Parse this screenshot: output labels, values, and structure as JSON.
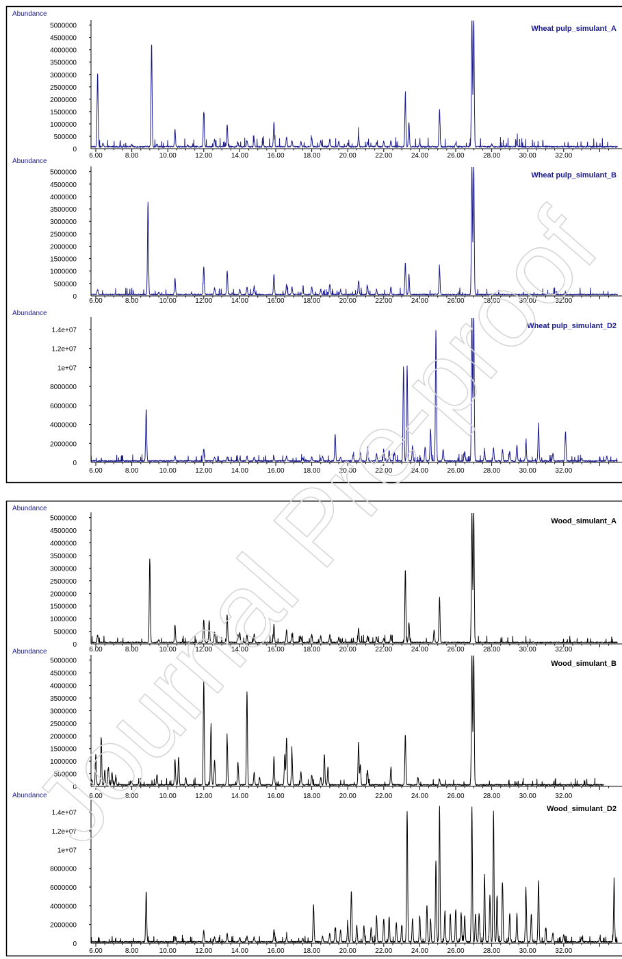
{
  "watermark": "Journal Pre-proof",
  "chart_data": [
    {
      "type": "line",
      "title": "Wheat pulp_simulant_A",
      "ylabel": "Abundance",
      "xlim": [
        5.6,
        35.0
      ],
      "ylim": [
        0,
        5100000
      ],
      "yticks": [
        0,
        500000,
        1000000,
        1500000,
        2000000,
        2500000,
        3000000,
        3500000,
        4000000,
        4500000,
        5000000
      ],
      "ytick_labels": [
        "0",
        "500000",
        "1000000",
        "1500000",
        "2000000",
        "2500000",
        "3000000",
        "3500000",
        "4000000",
        "4500000",
        "5000000"
      ],
      "xticks": [
        6,
        8,
        10,
        12,
        14,
        16,
        18,
        20,
        22,
        24,
        26,
        28,
        30,
        32
      ],
      "xtick_labels": [
        "6.00",
        "8.00",
        "10.00",
        "12.00",
        "14.00",
        "16.00",
        "18.00",
        "20.00",
        "22.00",
        "24.00",
        "26.00",
        "28.00",
        "30.00",
        "32.00"
      ],
      "color": "#1a1a8c",
      "baseline": 80000,
      "tail": 35.0,
      "peaks": [
        [
          6.1,
          3000000
        ],
        [
          6.4,
          120000
        ],
        [
          8.0,
          80000
        ],
        [
          9.1,
          4200000
        ],
        [
          9.4,
          100000
        ],
        [
          10.4,
          700000
        ],
        [
          11.1,
          80000
        ],
        [
          12.0,
          1400000
        ],
        [
          12.6,
          300000
        ],
        [
          13.3,
          900000
        ],
        [
          13.9,
          150000
        ],
        [
          14.4,
          250000
        ],
        [
          14.8,
          300000
        ],
        [
          15.3,
          150000
        ],
        [
          15.9,
          1000000
        ],
        [
          16.6,
          400000
        ],
        [
          16.9,
          250000
        ],
        [
          17.4,
          200000
        ],
        [
          18.0,
          350000
        ],
        [
          18.5,
          250000
        ],
        [
          19.0,
          300000
        ],
        [
          19.5,
          200000
        ],
        [
          20.0,
          150000
        ],
        [
          20.6,
          450000
        ],
        [
          21.1,
          200000
        ],
        [
          21.6,
          150000
        ],
        [
          22.0,
          200000
        ],
        [
          22.4,
          250000
        ],
        [
          23.2,
          2100000
        ],
        [
          23.4,
          1000000
        ],
        [
          24.0,
          150000
        ],
        [
          25.1,
          1500000
        ],
        [
          26.0,
          150000
        ],
        [
          26.9,
          5200000
        ],
        [
          27.0,
          5200000
        ],
        [
          28.0,
          100000
        ],
        [
          29.4,
          250000
        ]
      ]
    },
    {
      "type": "line",
      "title": "Wheat pulp_simulant_B",
      "ylabel": "Abundance",
      "xlim": [
        5.6,
        35.0
      ],
      "ylim": [
        0,
        5100000
      ],
      "yticks": [
        0,
        500000,
        1000000,
        1500000,
        2000000,
        2500000,
        3000000,
        3500000,
        4000000,
        4500000,
        5000000
      ],
      "ytick_labels": [
        "0",
        "500000",
        "1000000",
        "1500000",
        "2000000",
        "2500000",
        "3000000",
        "3500000",
        "4000000",
        "4500000",
        "5000000"
      ],
      "xticks": [
        6,
        8,
        10,
        12,
        14,
        16,
        18,
        20,
        22,
        24,
        26,
        28,
        30,
        32
      ],
      "xtick_labels": [
        "6.00",
        "8.00",
        "10.00",
        "12.00",
        "14.00",
        "16.00",
        "18.00",
        "20.00",
        "22.00",
        "24.00",
        "26.00",
        "28.00",
        "30.00",
        "32.00"
      ],
      "color": "#1a1a8c",
      "baseline": 60000,
      "tail": 35.0,
      "peaks": [
        [
          6.1,
          200000
        ],
        [
          8.9,
          3700000
        ],
        [
          9.5,
          100000
        ],
        [
          10.4,
          650000
        ],
        [
          12.0,
          1100000
        ],
        [
          12.6,
          250000
        ],
        [
          13.3,
          950000
        ],
        [
          14.0,
          200000
        ],
        [
          14.4,
          300000
        ],
        [
          14.8,
          350000
        ],
        [
          15.9,
          800000
        ],
        [
          16.6,
          400000
        ],
        [
          16.9,
          300000
        ],
        [
          17.5,
          200000
        ],
        [
          18.0,
          300000
        ],
        [
          18.5,
          200000
        ],
        [
          19.0,
          400000
        ],
        [
          19.6,
          150000
        ],
        [
          20.6,
          550000
        ],
        [
          21.1,
          300000
        ],
        [
          21.6,
          200000
        ],
        [
          22.4,
          300000
        ],
        [
          23.2,
          1300000
        ],
        [
          23.4,
          800000
        ],
        [
          25.1,
          1050000
        ],
        [
          26.9,
          5200000
        ],
        [
          27.0,
          5200000
        ]
      ]
    },
    {
      "type": "line",
      "title": "Wheat pulp_simulant_D2",
      "ylabel": "Abundance",
      "xlim": [
        5.6,
        35.0
      ],
      "ylim": [
        0,
        15000000
      ],
      "yticks": [
        0,
        2000000,
        4000000,
        6000000,
        8000000,
        10000000,
        12000000,
        14000000
      ],
      "ytick_labels": [
        "0",
        "2000000",
        "4000000",
        "6000000",
        "8000000",
        "1e+07",
        "1.2e+07",
        "1.4e+07"
      ],
      "xticks": [
        6,
        8,
        10,
        12,
        14,
        16,
        18,
        20,
        22,
        24,
        26,
        28,
        30,
        32
      ],
      "xtick_labels": [
        "6.00",
        "8.00",
        "10.00",
        "12.00",
        "14.00",
        "16.00",
        "18.00",
        "20.00",
        "22.00",
        "24.00",
        "26.00",
        "28.00",
        "30.00",
        "32.00"
      ],
      "color": "#1a1a8c",
      "baseline": 150000,
      "tail": 35.0,
      "peaks": [
        [
          8.8,
          5500000
        ],
        [
          10.4,
          500000
        ],
        [
          12.0,
          1300000
        ],
        [
          12.6,
          400000
        ],
        [
          13.3,
          400000
        ],
        [
          14.0,
          300000
        ],
        [
          14.4,
          500000
        ],
        [
          14.8,
          400000
        ],
        [
          15.9,
          400000
        ],
        [
          16.6,
          500000
        ],
        [
          17.5,
          300000
        ],
        [
          18.0,
          400000
        ],
        [
          18.6,
          500000
        ],
        [
          19.3,
          2800000
        ],
        [
          19.6,
          400000
        ],
        [
          20.3,
          700000
        ],
        [
          20.7,
          900000
        ],
        [
          21.1,
          1500000
        ],
        [
          21.6,
          800000
        ],
        [
          22.0,
          1100000
        ],
        [
          22.3,
          1100000
        ],
        [
          22.6,
          900000
        ],
        [
          23.1,
          9900000
        ],
        [
          23.3,
          10000000
        ],
        [
          23.6,
          1600000
        ],
        [
          24.3,
          1500000
        ],
        [
          24.6,
          3400000
        ],
        [
          24.9,
          13800000
        ],
        [
          25.3,
          1200000
        ],
        [
          26.5,
          1000000
        ],
        [
          26.9,
          15500000
        ],
        [
          27.0,
          15500000
        ],
        [
          27.6,
          1000000
        ],
        [
          28.1,
          1400000
        ],
        [
          28.6,
          1200000
        ],
        [
          29.0,
          1000000
        ],
        [
          29.4,
          1700000
        ],
        [
          29.9,
          1900000
        ],
        [
          30.6,
          3700000
        ],
        [
          31.4,
          800000
        ],
        [
          32.1,
          3100000
        ],
        [
          33.0,
          300000
        ],
        [
          34.4,
          500000
        ]
      ]
    },
    {
      "type": "line",
      "title": "Wood_simulant_A",
      "ylabel": "Abundance",
      "xlim": [
        5.6,
        35.0
      ],
      "ylim": [
        0,
        5100000
      ],
      "yticks": [
        0,
        500000,
        1000000,
        1500000,
        2000000,
        2500000,
        3000000,
        3500000,
        4000000,
        4500000,
        5000000
      ],
      "ytick_labels": [
        "0",
        "500000",
        "1000000",
        "1500000",
        "2000000",
        "2500000",
        "3000000",
        "3500000",
        "4000000",
        "4500000",
        "5000000"
      ],
      "xticks": [
        6,
        8,
        10,
        12,
        14,
        16,
        18,
        20,
        22,
        24,
        26,
        28,
        30,
        32
      ],
      "xtick_labels": [
        "6.00",
        "8.00",
        "10.00",
        "12.00",
        "14.00",
        "16.00",
        "18.00",
        "20.00",
        "22.00",
        "24.00",
        "26.00",
        "28.00",
        "30.00",
        "32.00"
      ],
      "color": "#000000",
      "baseline": 60000,
      "tail": 35.0,
      "peaks": [
        [
          6.1,
          300000
        ],
        [
          9.0,
          3300000
        ],
        [
          9.5,
          100000
        ],
        [
          10.4,
          700000
        ],
        [
          12.0,
          900000
        ],
        [
          12.3,
          850000
        ],
        [
          12.6,
          400000
        ],
        [
          13.3,
          1100000
        ],
        [
          13.9,
          300000
        ],
        [
          14.0,
          400000
        ],
        [
          14.4,
          300000
        ],
        [
          14.8,
          350000
        ],
        [
          15.9,
          700000
        ],
        [
          16.6,
          500000
        ],
        [
          16.9,
          350000
        ],
        [
          17.4,
          200000
        ],
        [
          18.0,
          300000
        ],
        [
          18.5,
          250000
        ],
        [
          19.0,
          300000
        ],
        [
          19.5,
          200000
        ],
        [
          20.6,
          550000
        ],
        [
          21.1,
          250000
        ],
        [
          21.6,
          200000
        ],
        [
          22.0,
          150000
        ],
        [
          22.4,
          300000
        ],
        [
          23.2,
          2900000
        ],
        [
          23.4,
          800000
        ],
        [
          24.8,
          500000
        ],
        [
          25.1,
          1800000
        ],
        [
          26.9,
          5200000
        ],
        [
          27.0,
          5200000
        ]
      ]
    },
    {
      "type": "line",
      "title": "Wood_simulant_B",
      "ylabel": "Abundance",
      "xlim": [
        5.6,
        35.0
      ],
      "ylim": [
        0,
        5100000
      ],
      "yticks": [
        0,
        500000,
        1000000,
        1500000,
        2000000,
        2500000,
        3000000,
        3500000,
        4000000,
        4500000,
        5000000
      ],
      "ytick_labels": [
        "0",
        "500000",
        "1000000",
        "1500000",
        "2000000",
        "2500000",
        "3000000",
        "3500000",
        "4000000",
        "4500000",
        "5000000"
      ],
      "xticks": [
        6,
        8,
        10,
        12,
        14,
        16,
        18,
        20,
        22,
        24,
        26,
        28,
        30,
        32
      ],
      "xtick_labels": [
        "6.00",
        "8.00",
        "10.00",
        "12.00",
        "14.00",
        "16.00",
        "18.00",
        "20.00",
        "22.00",
        "24.00",
        "26.00",
        "28.00",
        "30.00",
        "32.00"
      ],
      "color": "#000000",
      "baseline": 60000,
      "tail": 34.2,
      "peaks": [
        [
          5.7,
          400000
        ],
        [
          6.0,
          1200000
        ],
        [
          6.3,
          1900000
        ],
        [
          6.5,
          600000
        ],
        [
          6.7,
          700000
        ],
        [
          6.9,
          500000
        ],
        [
          7.1,
          200000
        ],
        [
          8.0,
          150000
        ],
        [
          9.4,
          400000
        ],
        [
          10.4,
          1000000
        ],
        [
          10.6,
          1100000
        ],
        [
          11.0,
          300000
        ],
        [
          12.0,
          4100000
        ],
        [
          12.4,
          2300000
        ],
        [
          12.6,
          1000000
        ],
        [
          13.3,
          1800000
        ],
        [
          13.9,
          900000
        ],
        [
          14.4,
          3700000
        ],
        [
          14.8,
          500000
        ],
        [
          15.1,
          300000
        ],
        [
          15.9,
          1100000
        ],
        [
          16.5,
          1200000
        ],
        [
          16.6,
          1900000
        ],
        [
          16.9,
          1300000
        ],
        [
          17.4,
          500000
        ],
        [
          18.0,
          400000
        ],
        [
          18.5,
          300000
        ],
        [
          18.7,
          1200000
        ],
        [
          18.9,
          700000
        ],
        [
          20.6,
          1700000
        ],
        [
          20.7,
          800000
        ],
        [
          21.1,
          600000
        ],
        [
          22.4,
          700000
        ],
        [
          23.2,
          2000000
        ],
        [
          23.9,
          300000
        ],
        [
          25.1,
          200000
        ],
        [
          26.9,
          5200000
        ],
        [
          27.0,
          5200000
        ]
      ]
    },
    {
      "type": "line",
      "title": "Wood_simulant_D2",
      "ylabel": "Abundance",
      "xlim": [
        5.6,
        35.0
      ],
      "ylim": [
        0,
        15000000
      ],
      "yticks": [
        0,
        2000000,
        4000000,
        6000000,
        8000000,
        10000000,
        12000000,
        14000000
      ],
      "ytick_labels": [
        "0",
        "2000000",
        "4000000",
        "6000000",
        "8000000",
        "1e+07",
        "1.2e+07",
        "1.4e+07"
      ],
      "xticks": [
        6,
        8,
        10,
        12,
        14,
        16,
        18,
        20,
        22,
        24,
        26,
        28,
        30,
        32
      ],
      "xtick_labels": [
        "6.00",
        "8.00",
        "10.00",
        "12.00",
        "14.00",
        "16.00",
        "18.00",
        "20.00",
        "22.00",
        "24.00",
        "26.00",
        "28.00",
        "30.00",
        "32.00"
      ],
      "color": "#000000",
      "baseline": 150000,
      "tail": 35.0,
      "peaks": [
        [
          8.8,
          5400000
        ],
        [
          10.4,
          600000
        ],
        [
          12.0,
          1200000
        ],
        [
          12.6,
          500000
        ],
        [
          13.3,
          900000
        ],
        [
          14.0,
          500000
        ],
        [
          14.4,
          600000
        ],
        [
          14.8,
          500000
        ],
        [
          15.9,
          1300000
        ],
        [
          16.6,
          500000
        ],
        [
          17.5,
          400000
        ],
        [
          18.1,
          4000000
        ],
        [
          18.6,
          600000
        ],
        [
          19.0,
          900000
        ],
        [
          19.3,
          1500000
        ],
        [
          19.6,
          1300000
        ],
        [
          20.0,
          1800000
        ],
        [
          20.2,
          5500000
        ],
        [
          20.5,
          1800000
        ],
        [
          20.9,
          1700000
        ],
        [
          21.3,
          1500000
        ],
        [
          21.6,
          2800000
        ],
        [
          22.0,
          2500000
        ],
        [
          22.3,
          2700000
        ],
        [
          22.7,
          2000000
        ],
        [
          23.0,
          1800000
        ],
        [
          23.3,
          14000000
        ],
        [
          23.6,
          2500000
        ],
        [
          24.0,
          2800000
        ],
        [
          24.4,
          3900000
        ],
        [
          24.6,
          2500000
        ],
        [
          24.9,
          8700000
        ],
        [
          25.1,
          14500000
        ],
        [
          25.4,
          3300000
        ],
        [
          25.7,
          3000000
        ],
        [
          26.0,
          3500000
        ],
        [
          26.3,
          3100000
        ],
        [
          26.5,
          2800000
        ],
        [
          26.9,
          14500000
        ],
        [
          27.1,
          3000000
        ],
        [
          27.3,
          3000000
        ],
        [
          27.6,
          7200000
        ],
        [
          27.9,
          5000000
        ],
        [
          28.1,
          14000000
        ],
        [
          28.3,
          5000000
        ],
        [
          28.6,
          6400000
        ],
        [
          29.0,
          3000000
        ],
        [
          29.4,
          3000000
        ],
        [
          29.9,
          5800000
        ],
        [
          30.2,
          3000000
        ],
        [
          30.6,
          6600000
        ],
        [
          31.0,
          1500000
        ],
        [
          31.4,
          1000000
        ],
        [
          32.0,
          800000
        ],
        [
          33.0,
          500000
        ],
        [
          34.0,
          400000
        ],
        [
          34.8,
          6300000
        ]
      ]
    }
  ]
}
